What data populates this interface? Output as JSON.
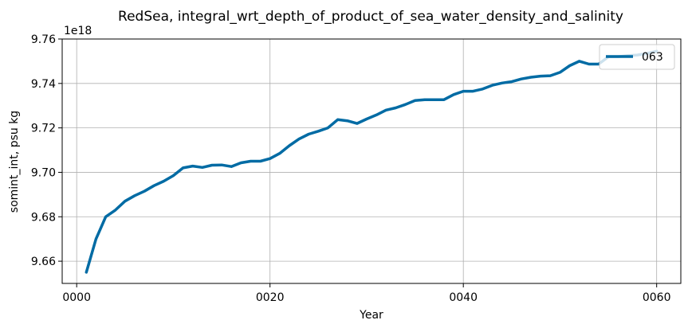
{
  "chart_data": {
    "type": "line",
    "title": "RedSea, integral_wrt_depth_of_product_of_sea_water_density_and_salinity",
    "xlabel": "Year",
    "ylabel": "somint_int, psu kg",
    "y_offset_label": "1e18",
    "xlim": [
      -1.5,
      62.5
    ],
    "ylim": [
      9.65,
      9.76
    ],
    "x_ticks": [
      0,
      20,
      40,
      60
    ],
    "x_tick_labels": [
      "0000",
      "0020",
      "0040",
      "0060"
    ],
    "y_ticks": [
      9.66,
      9.68,
      9.7,
      9.72,
      9.74,
      9.76
    ],
    "y_tick_labels": [
      "9.66",
      "9.68",
      "9.70",
      "9.72",
      "9.74",
      "9.76"
    ],
    "grid": true,
    "legend_position": "top-right",
    "series": [
      {
        "name": "063",
        "color": "#006ba4",
        "x": [
          1,
          2,
          3,
          4,
          5,
          6,
          7,
          8,
          9,
          10,
          11,
          12,
          13,
          14,
          15,
          16,
          17,
          18,
          19,
          20,
          21,
          22,
          23,
          24,
          25,
          26,
          27,
          28,
          29,
          30,
          31,
          32,
          33,
          34,
          35,
          36,
          37,
          38,
          39,
          40,
          41,
          42,
          43,
          44,
          45,
          46,
          47,
          48,
          49,
          50,
          51,
          52,
          53,
          54,
          55,
          56,
          57,
          58,
          59,
          60
        ],
        "y": [
          9.655,
          9.67,
          9.68,
          9.683,
          9.687,
          9.6895,
          9.6915,
          9.694,
          9.696,
          9.6985,
          9.702,
          9.7028,
          9.7022,
          9.7032,
          9.7033,
          9.7026,
          9.7043,
          9.705,
          9.705,
          9.7062,
          9.7085,
          9.712,
          9.715,
          9.7172,
          9.7185,
          9.72,
          9.7237,
          9.7232,
          9.722,
          9.724,
          9.7258,
          9.728,
          9.729,
          9.7305,
          9.7323,
          9.7327,
          9.7327,
          9.7327,
          9.735,
          9.7365,
          9.7365,
          9.7375,
          9.7392,
          9.7402,
          9.7408,
          9.742,
          9.7428,
          9.7433,
          9.7435,
          9.745,
          9.748,
          9.75,
          9.7487,
          9.7487,
          9.752,
          9.752,
          9.7525,
          9.7528,
          9.7535,
          9.7545
        ]
      }
    ]
  }
}
